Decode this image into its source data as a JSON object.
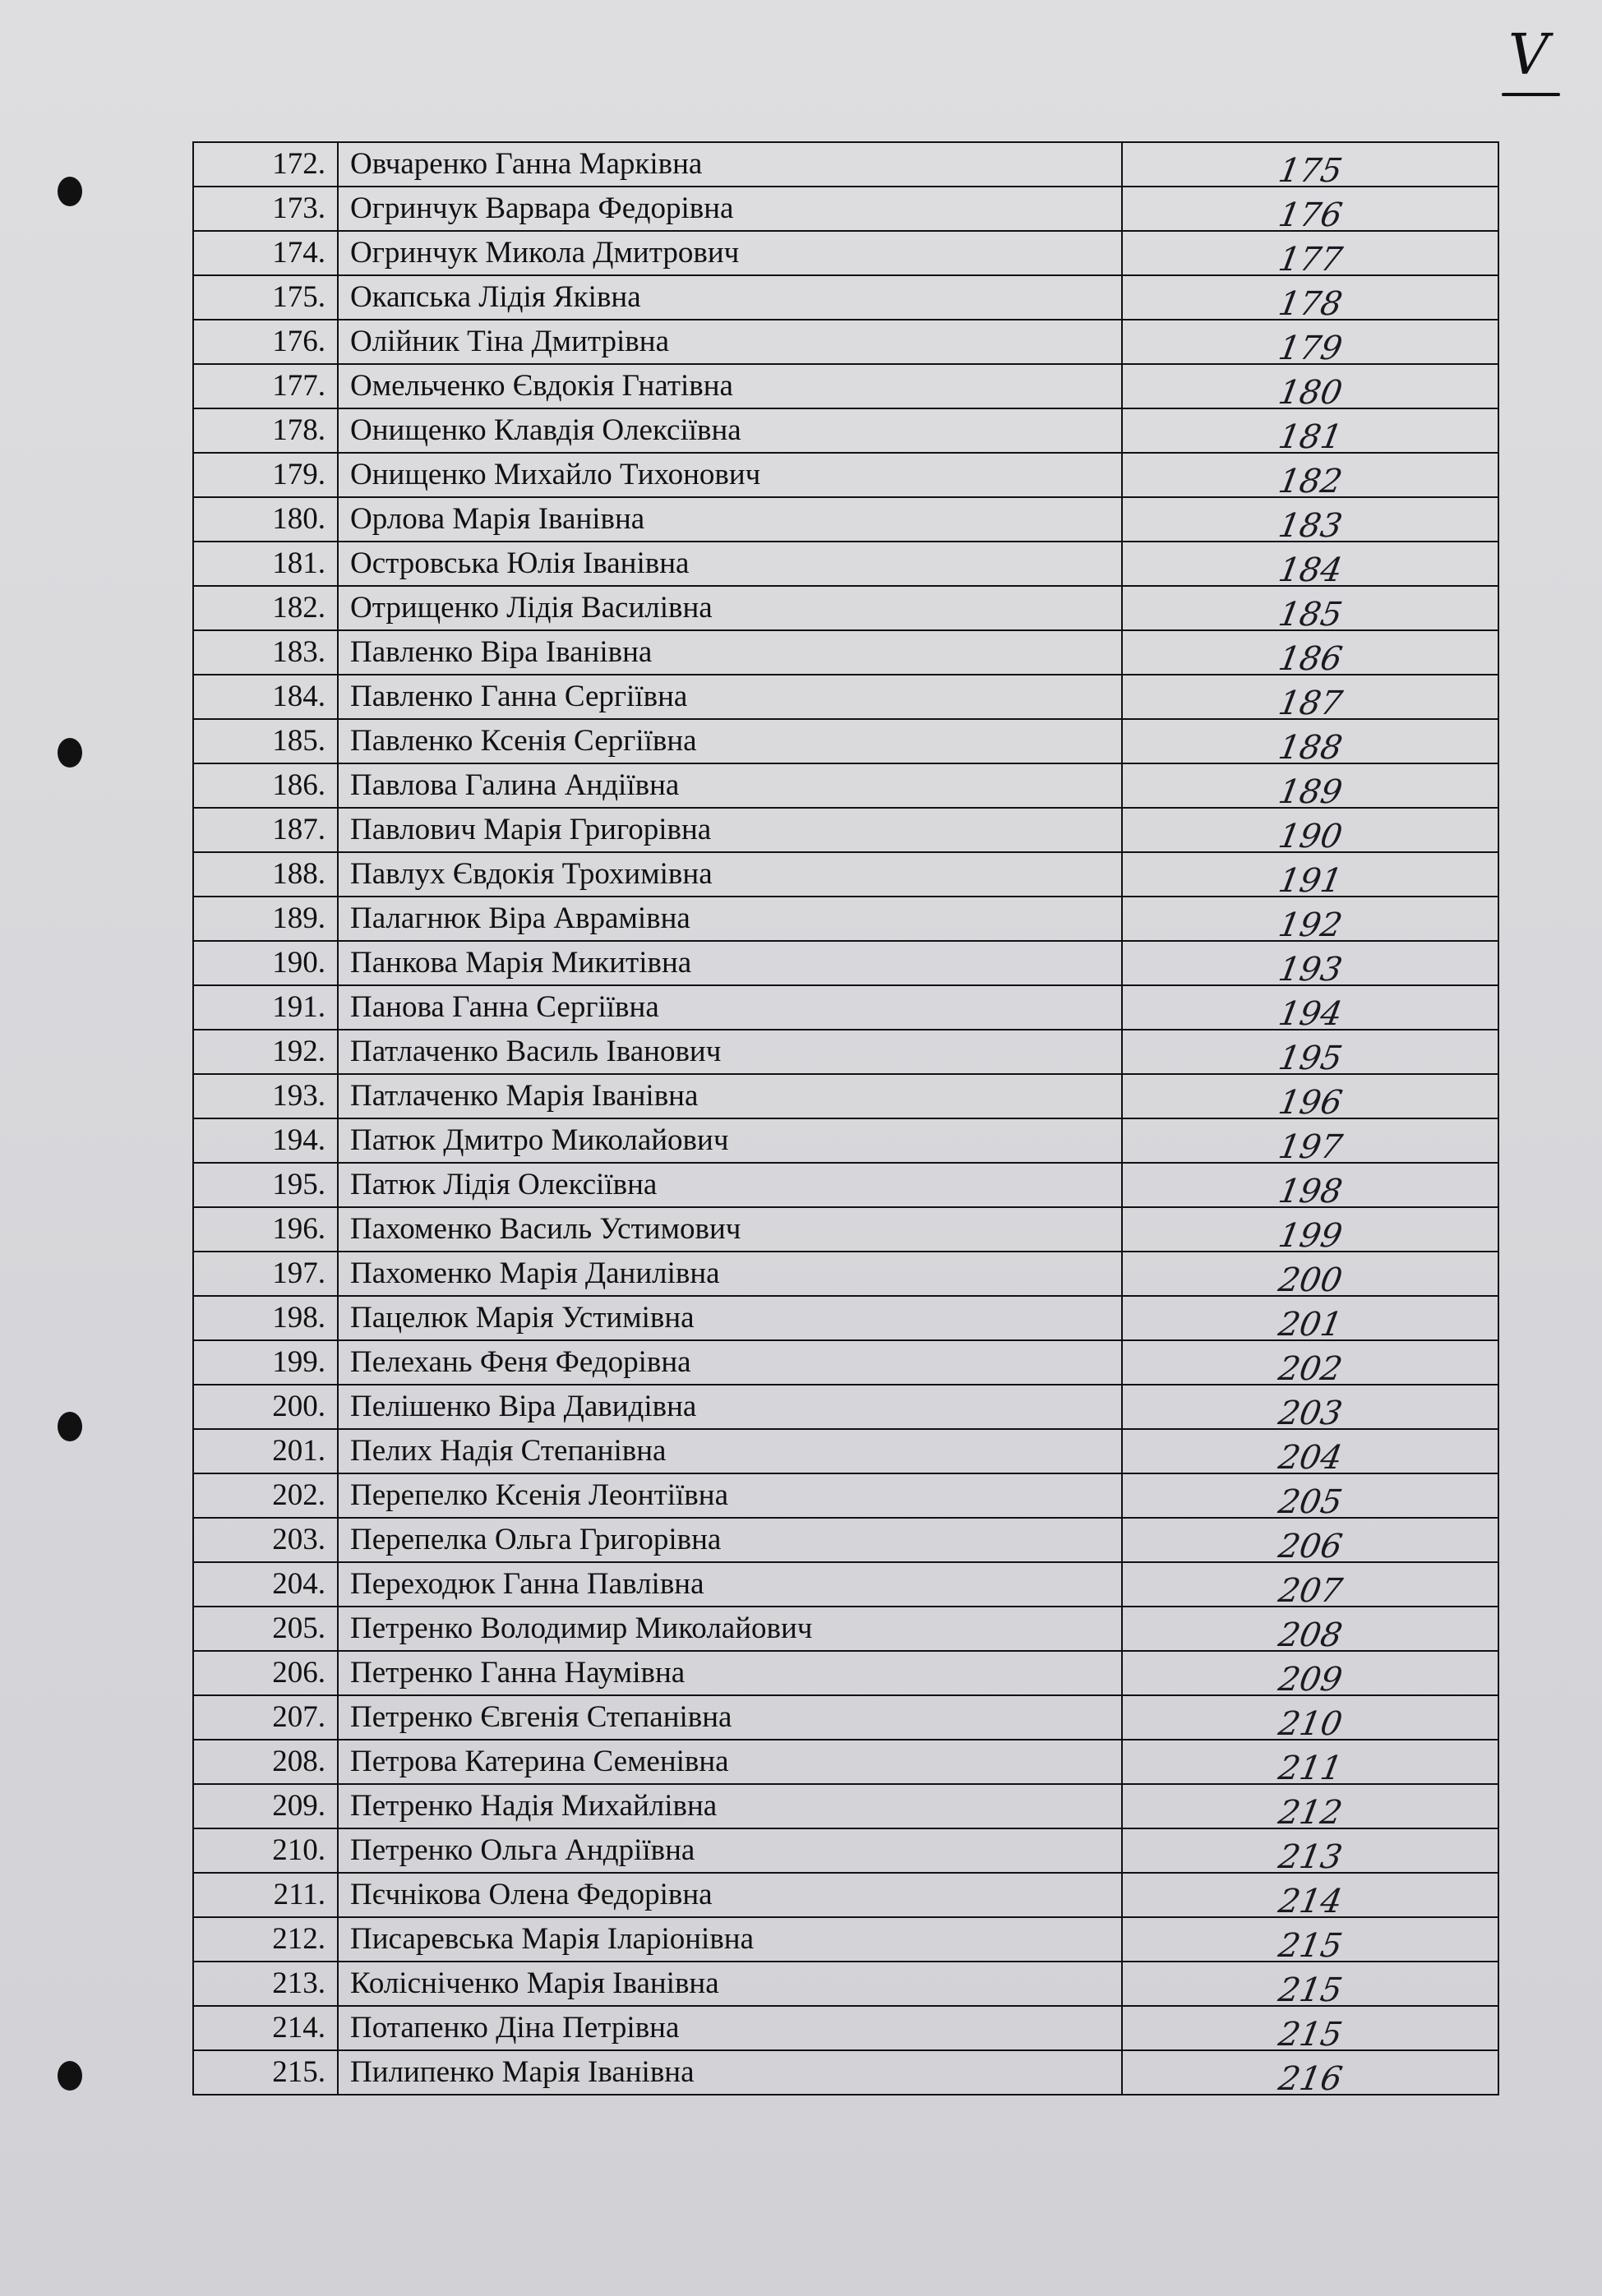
{
  "sheet_mark": "V",
  "rows": [
    {
      "no": "172.",
      "name": "Овчаренко Ганна Марківна",
      "hw": "175"
    },
    {
      "no": "173.",
      "name": "Огринчук Варвара Федорівна",
      "hw": "176"
    },
    {
      "no": "174.",
      "name": "Огринчук Микола Дмитрович",
      "hw": "177"
    },
    {
      "no": "175.",
      "name": "Окапська Лідія Яківна",
      "hw": "178"
    },
    {
      "no": "176.",
      "name": "Олійник Тіна Дмитрівна",
      "hw": "179"
    },
    {
      "no": "177.",
      "name": "Омельченко Євдокія Гнатівна",
      "hw": "180"
    },
    {
      "no": "178.",
      "name": "Онищенко Клавдія Олексіївна",
      "hw": "181"
    },
    {
      "no": "179.",
      "name": "Онищенко Михайло Тихонович",
      "hw": "182"
    },
    {
      "no": "180.",
      "name": "Орлова Марія Іванівна",
      "hw": "183"
    },
    {
      "no": "181.",
      "name": "Островська Юлія Іванівна",
      "hw": "184"
    },
    {
      "no": "182.",
      "name": "Отрищенко Лідія Василівна",
      "hw": "185"
    },
    {
      "no": "183.",
      "name": "Павленко Віра Іванівна",
      "hw": "186"
    },
    {
      "no": "184.",
      "name": "Павленко Ганна Сергіївна",
      "hw": "187"
    },
    {
      "no": "185.",
      "name": "Павленко Ксенія Сергіївна",
      "hw": "188"
    },
    {
      "no": "186.",
      "name": "Павлова Галина Андіївна",
      "hw": "189"
    },
    {
      "no": "187.",
      "name": "Павлович Марія Григорівна",
      "hw": "190"
    },
    {
      "no": "188.",
      "name": "Павлух Євдокія Трохимівна",
      "hw": "191"
    },
    {
      "no": "189.",
      "name": "Палагнюк Віра Аврамівна",
      "hw": "192"
    },
    {
      "no": "190.",
      "name": "Панкова Марія Микитівна",
      "hw": "193"
    },
    {
      "no": "191.",
      "name": "Панова Ганна Сергіївна",
      "hw": "194"
    },
    {
      "no": "192.",
      "name": "Патлаченко Василь Іванович",
      "hw": "195"
    },
    {
      "no": "193.",
      "name": "Патлаченко Марія Іванівна",
      "hw": "196"
    },
    {
      "no": "194.",
      "name": "Патюк Дмитро Миколайович",
      "hw": "197"
    },
    {
      "no": "195.",
      "name": "Патюк Лідія Олексіївна",
      "hw": "198"
    },
    {
      "no": "196.",
      "name": "Пахоменко Василь Устимович",
      "hw": "199"
    },
    {
      "no": "197.",
      "name": "Пахоменко Марія Данилівна",
      "hw": "200"
    },
    {
      "no": "198.",
      "name": "Пацелюк Марія Устимівна",
      "hw": "201"
    },
    {
      "no": "199.",
      "name": "Пелехань Феня Федорівна",
      "hw": "202"
    },
    {
      "no": "200.",
      "name": "Пелішенко Віра Давидівна",
      "hw": "203"
    },
    {
      "no": "201.",
      "name": "Пелих Надія Степанівна",
      "hw": "204"
    },
    {
      "no": "202.",
      "name": "Перепелко Ксенія Леонтіївна",
      "hw": "205"
    },
    {
      "no": "203.",
      "name": "Перепелка Ольга Григорівна",
      "hw": "206"
    },
    {
      "no": "204.",
      "name": "Переходюк Ганна Павлівна",
      "hw": "207"
    },
    {
      "no": "205.",
      "name": "Петренко Володимир Миколайович",
      "hw": "208"
    },
    {
      "no": "206.",
      "name": "Петренко Ганна Наумівна",
      "hw": "209"
    },
    {
      "no": "207.",
      "name": "Петренко Євгенія Степанівна",
      "hw": "210"
    },
    {
      "no": "208.",
      "name": "Петрова Катерина Семенівна",
      "hw": "211"
    },
    {
      "no": "209.",
      "name": "Петренко Надія Михайлівна",
      "hw": "212"
    },
    {
      "no": "210.",
      "name": "Петренко Ольга Андріївна",
      "hw": "213"
    },
    {
      "no": "211.",
      "name": "Пєчнікова Олена Федорівна",
      "hw": "214"
    },
    {
      "no": "212.",
      "name": "Писаревська Марія Іларіонівна",
      "hw": "215"
    },
    {
      "no": "213.",
      "name": "Колісніченко Марія Іванівна",
      "hw": "215"
    },
    {
      "no": "214.",
      "name": "Потапенко Діна Петрівна",
      "hw": "215"
    },
    {
      "no": "215.",
      "name": "Пилипенко Марія Іванівна",
      "hw": "216"
    }
  ]
}
